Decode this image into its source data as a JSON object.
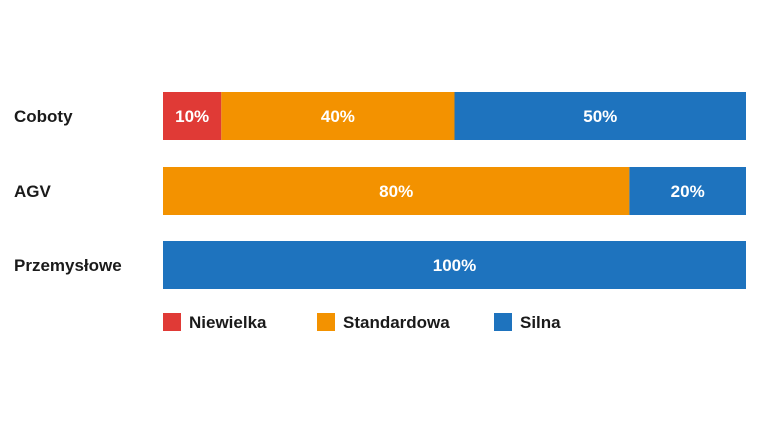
{
  "chart_data": {
    "type": "bar",
    "orientation": "horizontal",
    "stacked": true,
    "categories": [
      "Coboty",
      "AGV",
      "Przemysłowe"
    ],
    "series": [
      {
        "name": "Niewielka",
        "color": "#e03a36",
        "values": [
          10,
          0,
          0
        ]
      },
      {
        "name": "Standardowa",
        "color": "#f39200",
        "values": [
          40,
          80,
          0
        ]
      },
      {
        "name": "Silna",
        "color": "#1e73be",
        "values": [
          50,
          20,
          100
        ]
      }
    ],
    "value_suffix": "%",
    "xlim": [
      0,
      100
    ],
    "grid": false,
    "legend_position": "bottom"
  }
}
